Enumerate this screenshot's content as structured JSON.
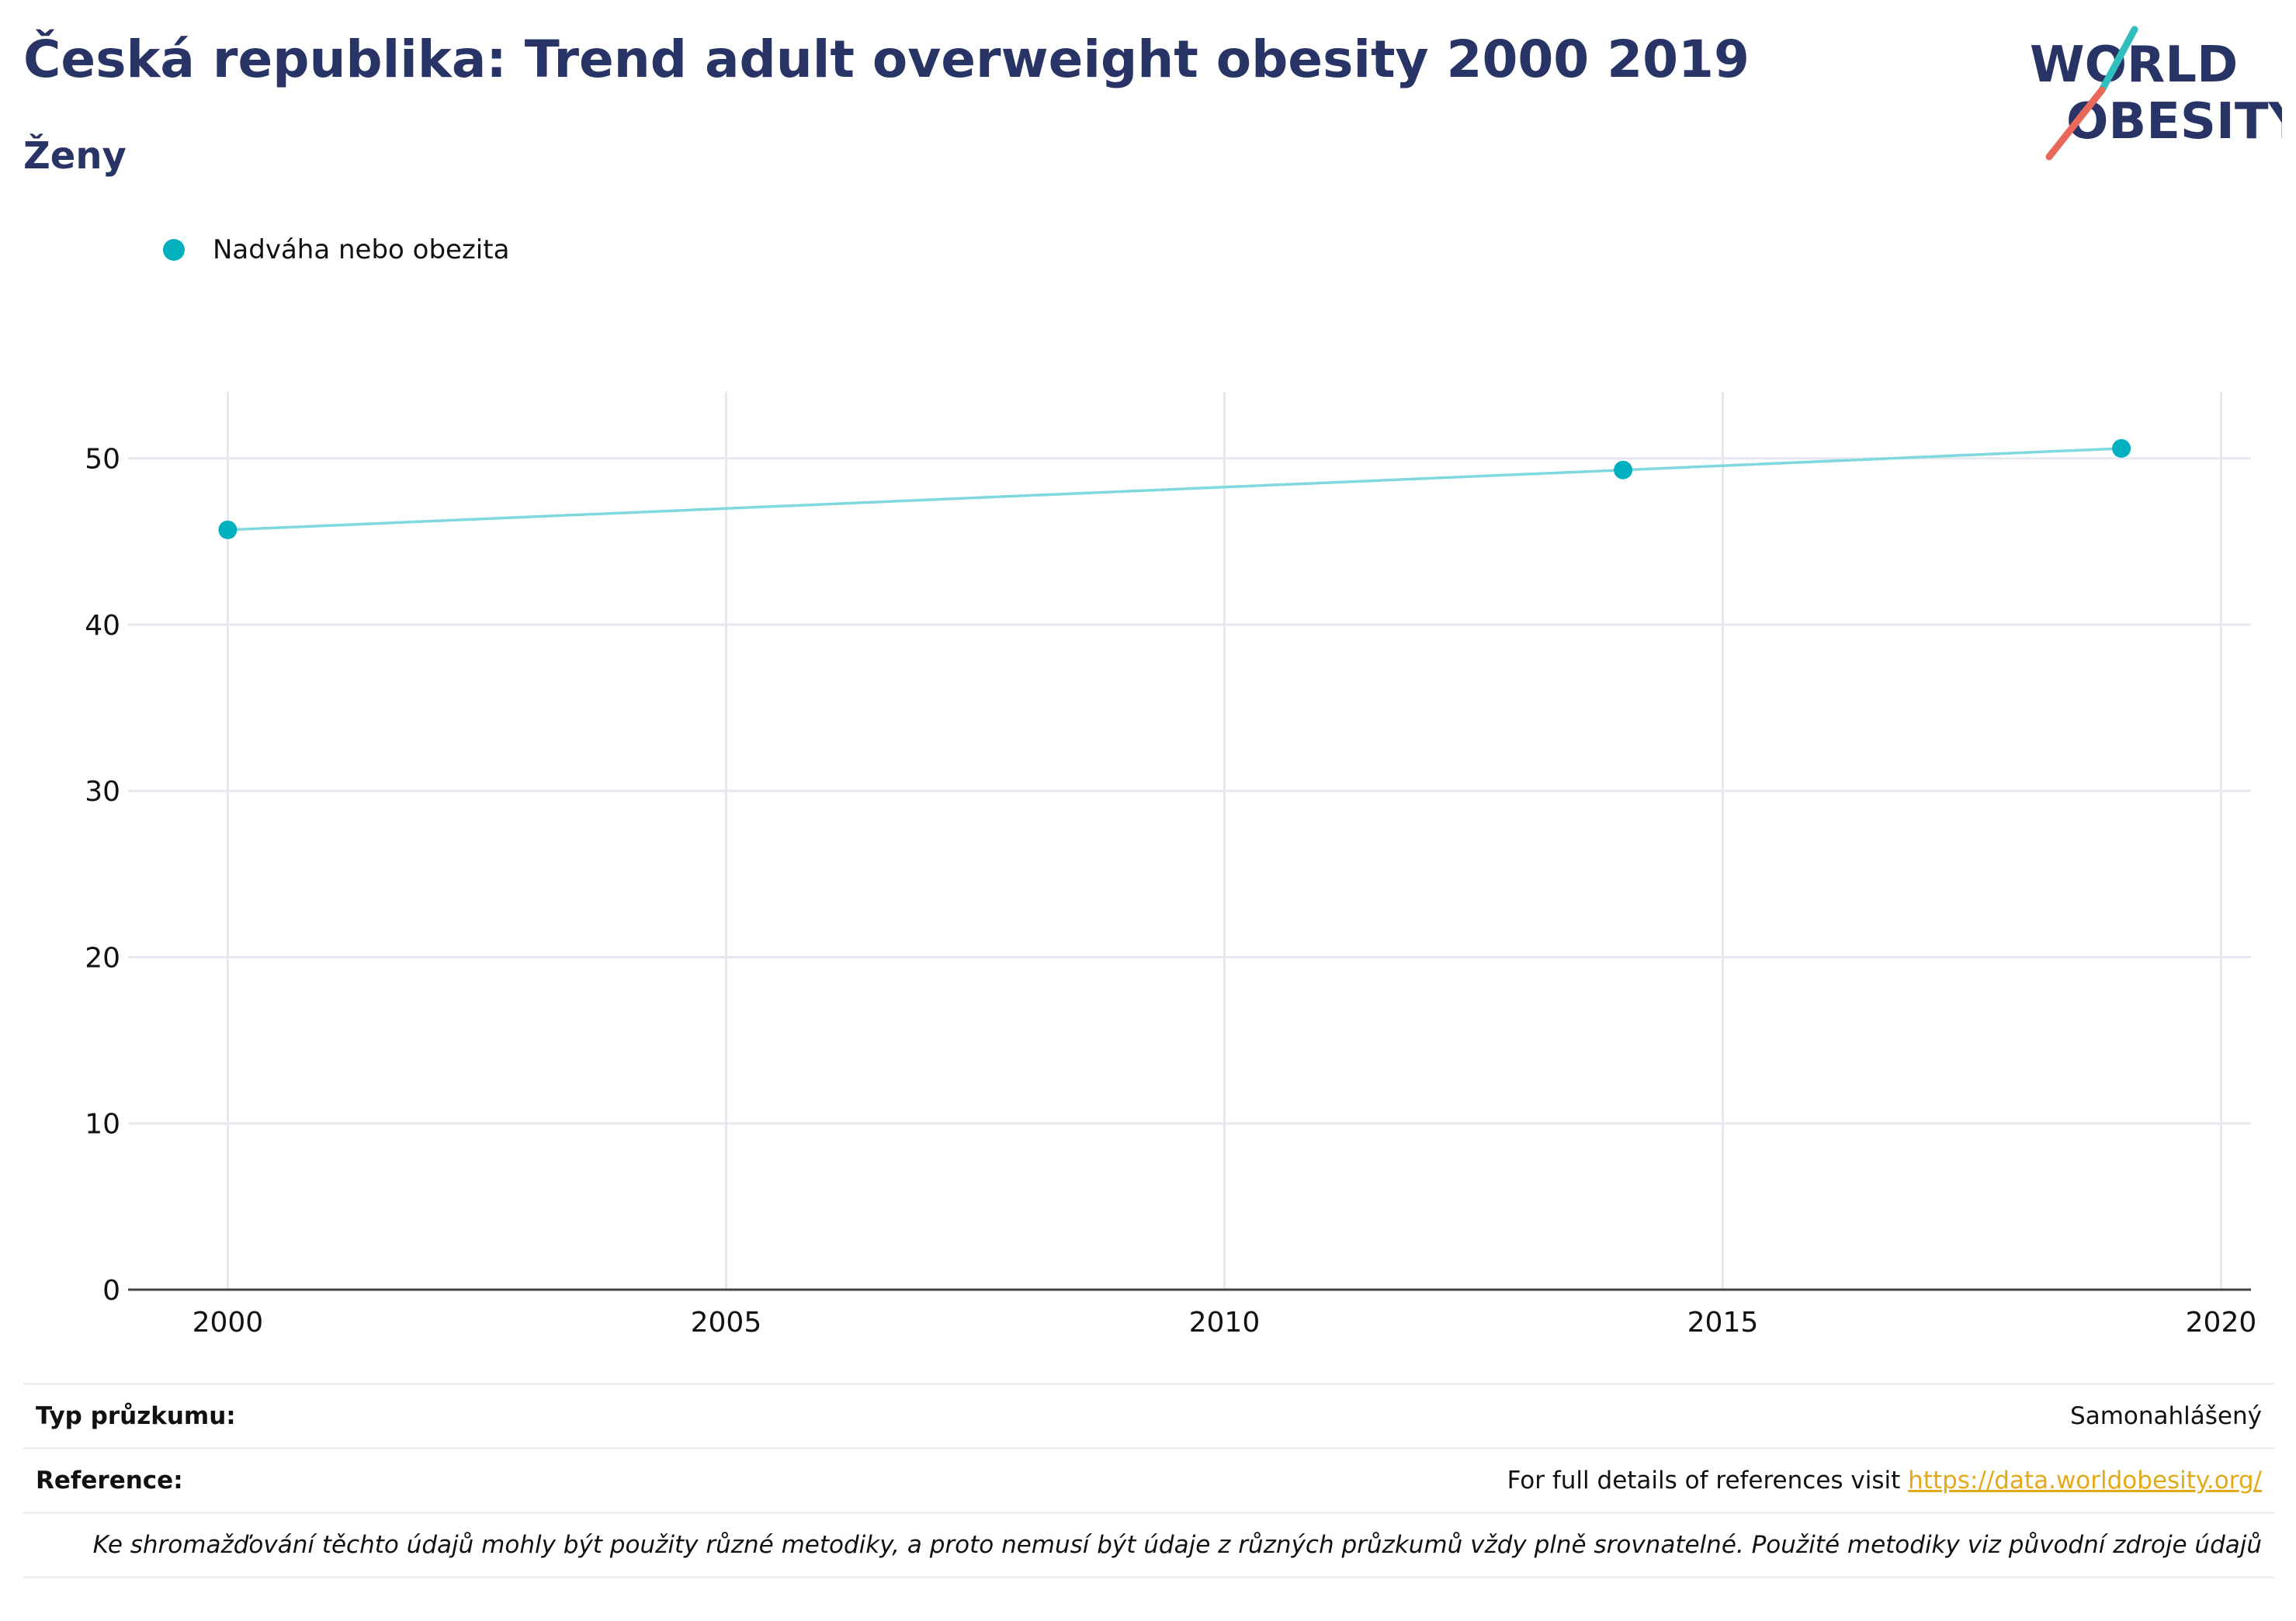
{
  "header": {
    "title": "Česká republika: Trend adult overweight obesity 2000 2019",
    "subtitle": "Ženy"
  },
  "logo": {
    "line1": "WORLD",
    "line2": "OBESITY"
  },
  "colors": {
    "brand_navy": "#283366",
    "series": "#00b0be",
    "series_line": "#7fd8de",
    "accent_teal": "#2fbfbf",
    "accent_coral": "#e8685a",
    "link": "#e4a91a"
  },
  "chart_data": {
    "type": "line",
    "series": [
      {
        "name": "Nadváha nebo obezita",
        "x": [
          2000,
          2014,
          2019
        ],
        "y": [
          45.7,
          49.3,
          50.6
        ]
      }
    ],
    "xlim": [
      1999,
      2020.3
    ],
    "ylim": [
      0,
      54
    ],
    "xticks": [
      2000,
      2005,
      2010,
      2015,
      2020
    ],
    "yticks": [
      0,
      10,
      20,
      30,
      40,
      50
    ],
    "grid": true,
    "legend": "top-left"
  },
  "footer": {
    "survey_label": "Typ průzkumu:",
    "survey_value": "Samonahlášený",
    "reference_label": "Reference:",
    "reference_text": "For full details of references visit",
    "reference_link": "https://data.worldobesity.org/",
    "note": "Ke shromažďování těchto údajů mohly být použity různé metodiky, a proto nemusí být údaje z různých průzkumů vždy plně srovnatelné. Použité metodiky viz původní zdroje údajů"
  }
}
